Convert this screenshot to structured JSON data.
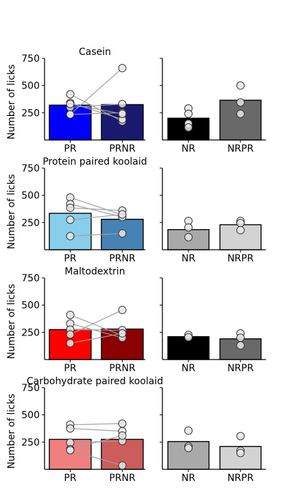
{
  "chart_data": [
    {
      "type": "bar",
      "title": "Casein",
      "ylabel": "Number of licks",
      "ylim": [
        0,
        750
      ],
      "yticks": [
        250,
        500,
        750
      ],
      "left": {
        "categories": [
          "PR",
          "PRNR"
        ],
        "means": [
          320,
          325
        ],
        "colors": [
          "#0000ff",
          "#191970"
        ],
        "pairs": [
          [
            420,
            170
          ],
          [
            340,
            190
          ],
          [
            300,
            330
          ],
          [
            235,
            250
          ],
          [
            235,
            660
          ],
          [
            330,
            240
          ]
        ]
      },
      "right": {
        "categories": [
          "NR",
          "NRPR"
        ],
        "means": [
          200,
          365
        ],
        "colors": [
          "#000000",
          "#696969"
        ],
        "points": [
          [
            290,
            240,
            145,
            150,
            115
          ],
          [
            500,
            345,
            240
          ]
        ]
      }
    },
    {
      "type": "bar",
      "title": "Protein paired koolaid",
      "ylabel": "Number of licks",
      "ylim": [
        0,
        750
      ],
      "yticks": [
        250,
        500,
        750
      ],
      "left": {
        "categories": [
          "PR",
          "PRNR"
        ],
        "means": [
          335,
          280
        ],
        "colors": [
          "#87ceeb",
          "#4682b4"
        ],
        "pairs": [
          [
            480,
            320
          ],
          [
            420,
            300
          ],
          [
            385,
            360
          ],
          [
            275,
            325
          ],
          [
            125,
            150
          ]
        ]
      },
      "right": {
        "categories": [
          "NR",
          "NRPR"
        ],
        "means": [
          185,
          230
        ],
        "colors": [
          "#a9a9a9",
          "#d3d3d3"
        ],
        "points": [
          [
            265,
            205,
            115
          ],
          [
            265,
            245,
            180
          ]
        ]
      }
    },
    {
      "type": "bar",
      "title": "Maltodextrin",
      "ylabel": "Number of licks",
      "ylim": [
        0,
        750
      ],
      "yticks": [
        250,
        500,
        750
      ],
      "left": {
        "categories": [
          "PR",
          "PRNR"
        ],
        "means": [
          275,
          280
        ],
        "colors": [
          "#ff0000",
          "#8b0000"
        ],
        "pairs": [
          [
            410,
            220
          ],
          [
            330,
            200
          ],
          [
            275,
            270
          ],
          [
            230,
            455
          ],
          [
            150,
            240
          ]
        ]
      },
      "right": {
        "categories": [
          "NR",
          "NRPR"
        ],
        "means": [
          210,
          190
        ],
        "colors": [
          "#000000",
          "#696969"
        ],
        "points": [
          [
            225,
            205
          ],
          [
            240,
            200,
            130
          ]
        ]
      }
    },
    {
      "type": "bar",
      "title": "Carbohydrate paired koolaid",
      "ylabel": "Number of licks",
      "ylim": [
        0,
        750
      ],
      "yticks": [
        250,
        500,
        750
      ],
      "left": {
        "categories": [
          "PR",
          "PRNR"
        ],
        "means": [
          275,
          275
        ],
        "colors": [
          "#f08080",
          "#cd5c5c"
        ],
        "pairs": [
          [
            410,
            420
          ],
          [
            375,
            350
          ],
          [
            245,
            260
          ],
          [
            185,
            310
          ],
          [
            175,
            35
          ]
        ]
      },
      "right": {
        "categories": [
          "NR",
          "NRPR"
        ],
        "means": [
          255,
          210
        ],
        "colors": [
          "#a9a9a9",
          "#d3d3d3"
        ],
        "points": [
          [
            355,
            210,
            195
          ],
          [
            305,
            170,
            150
          ]
        ]
      }
    }
  ]
}
